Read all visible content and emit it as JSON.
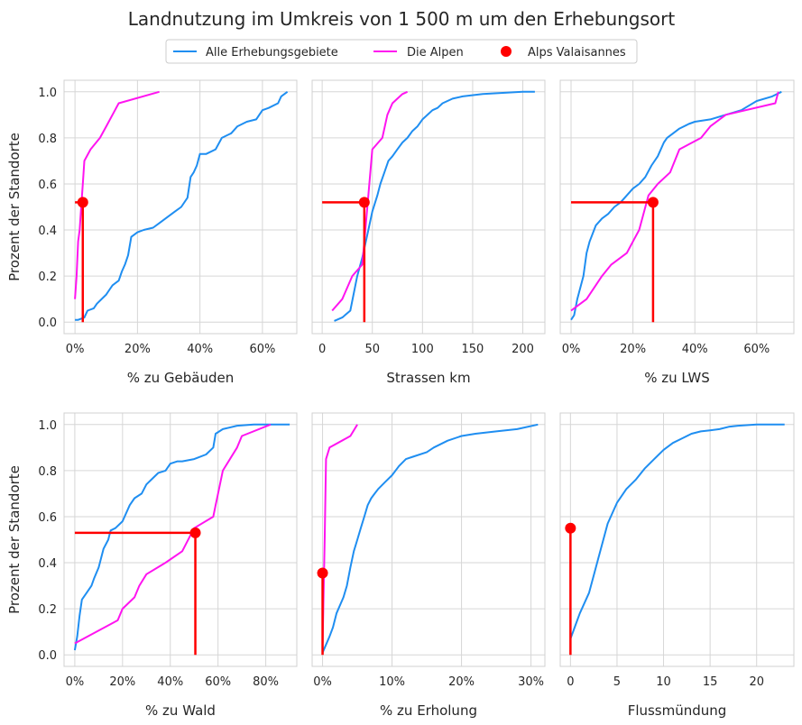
{
  "title": "Landnutzung im Umkreis von 1 500 m um den Erhebungsort",
  "colors": {
    "series_all": "#1f8ef1",
    "series_alps": "#ff14f0",
    "marker": "#ff0000",
    "grid": "#d6d6d6",
    "frame": "#d0d0d0",
    "text": "#262626"
  },
  "legend": {
    "placement": "top-center",
    "entries": [
      {
        "label": "Alle Erhebungsgebiete",
        "kind": "line",
        "color": "#1f8ef1"
      },
      {
        "label": "Die Alpen",
        "kind": "line",
        "color": "#ff14f0"
      },
      {
        "label": "Alps Valaisannes",
        "kind": "marker",
        "color": "#ff0000"
      }
    ]
  },
  "chart_data": [
    {
      "type": "line",
      "xlabel": "% zu Gebäuden",
      "ylabel": "Prozent der Standorte",
      "xlim": [
        -0.035,
        0.71
      ],
      "ylim": [
        -0.05,
        1.05
      ],
      "xticks": [
        0,
        0.2,
        0.4,
        0.6
      ],
      "xticklabels": [
        "0%",
        "20%",
        "40%",
        "60%"
      ],
      "yticks": [
        0,
        0.2,
        0.4,
        0.6,
        0.8,
        1.0
      ],
      "yticklabels": [
        "0.0",
        "0.2",
        "0.4",
        "0.6",
        "0.8",
        "1.0"
      ],
      "grid": true,
      "series": [
        {
          "name": "Alle Erhebungsgebiete",
          "x": [
            0,
            0.01,
            0.02,
            0.03,
            0.04,
            0.06,
            0.07,
            0.1,
            0.11,
            0.12,
            0.14,
            0.15,
            0.16,
            0.17,
            0.18,
            0.2,
            0.22,
            0.25,
            0.27,
            0.3,
            0.32,
            0.34,
            0.36,
            0.37,
            0.38,
            0.39,
            0.4,
            0.42,
            0.45,
            0.47,
            0.5,
            0.52,
            0.55,
            0.58,
            0.6,
            0.62,
            0.65,
            0.66,
            0.68
          ],
          "y": [
            0.01,
            0.01,
            0.015,
            0.02,
            0.05,
            0.06,
            0.08,
            0.12,
            0.14,
            0.16,
            0.18,
            0.22,
            0.25,
            0.29,
            0.37,
            0.39,
            0.4,
            0.41,
            0.43,
            0.46,
            0.48,
            0.5,
            0.54,
            0.63,
            0.65,
            0.68,
            0.73,
            0.73,
            0.75,
            0.8,
            0.82,
            0.85,
            0.87,
            0.88,
            0.92,
            0.93,
            0.95,
            0.98,
            1.0
          ]
        },
        {
          "name": "Die Alpen",
          "x": [
            0.0,
            0.005,
            0.01,
            0.015,
            0.02,
            0.025,
            0.03,
            0.05,
            0.08,
            0.1,
            0.12,
            0.14,
            0.27
          ],
          "y": [
            0.1,
            0.2,
            0.35,
            0.4,
            0.5,
            0.6,
            0.7,
            0.75,
            0.8,
            0.85,
            0.9,
            0.95,
            1.0
          ]
        }
      ],
      "marker": {
        "x": 0.025,
        "y": 0.52,
        "hline": true
      }
    },
    {
      "type": "line",
      "xlabel": "Strassen km",
      "ylabel": "",
      "xlim": [
        -10,
        222
      ],
      "ylim": [
        -0.05,
        1.05
      ],
      "xticks": [
        0,
        50,
        100,
        150,
        200
      ],
      "xticklabels": [
        "0",
        "50",
        "100",
        "150",
        "200"
      ],
      "yticks": [
        0,
        0.2,
        0.4,
        0.6,
        0.8,
        1.0
      ],
      "yticklabels": [],
      "grid": true,
      "series": [
        {
          "name": "Alle Erhebungsgebiete",
          "x": [
            12,
            20,
            28,
            35,
            40,
            45,
            50,
            55,
            58,
            62,
            66,
            70,
            75,
            80,
            85,
            90,
            95,
            100,
            105,
            110,
            115,
            120,
            130,
            140,
            160,
            200,
            212
          ],
          "y": [
            0.005,
            0.02,
            0.05,
            0.2,
            0.28,
            0.38,
            0.48,
            0.55,
            0.6,
            0.65,
            0.7,
            0.72,
            0.75,
            0.78,
            0.8,
            0.83,
            0.85,
            0.88,
            0.9,
            0.92,
            0.93,
            0.95,
            0.97,
            0.98,
            0.99,
            1.0,
            1.0
          ]
        },
        {
          "name": "Die Alpen",
          "x": [
            10,
            20,
            30,
            40,
            45,
            50,
            60,
            65,
            70,
            75,
            80,
            85
          ],
          "y": [
            0.05,
            0.1,
            0.2,
            0.25,
            0.5,
            0.75,
            0.8,
            0.9,
            0.95,
            0.97,
            0.99,
            1.0
          ]
        }
      ],
      "marker": {
        "x": 42,
        "y": 0.52,
        "hline": true
      }
    },
    {
      "type": "line",
      "xlabel": "% zu LWS",
      "ylabel": "",
      "xlim": [
        -0.035,
        0.72
      ],
      "ylim": [
        -0.05,
        1.05
      ],
      "xticks": [
        0,
        0.2,
        0.4,
        0.6
      ],
      "xticklabels": [
        "0%",
        "20%",
        "40%",
        "60%"
      ],
      "yticks": [
        0,
        0.2,
        0.4,
        0.6,
        0.8,
        1.0
      ],
      "yticklabels": [],
      "grid": true,
      "series": [
        {
          "name": "Alle Erhebungsgebiete",
          "x": [
            0,
            0.01,
            0.02,
            0.04,
            0.05,
            0.06,
            0.08,
            0.1,
            0.12,
            0.14,
            0.16,
            0.18,
            0.2,
            0.22,
            0.24,
            0.26,
            0.28,
            0.3,
            0.31,
            0.33,
            0.35,
            0.38,
            0.4,
            0.45,
            0.5,
            0.55,
            0.6,
            0.65,
            0.68
          ],
          "y": [
            0.01,
            0.03,
            0.1,
            0.2,
            0.3,
            0.35,
            0.42,
            0.45,
            0.47,
            0.5,
            0.52,
            0.55,
            0.58,
            0.6,
            0.63,
            0.68,
            0.72,
            0.78,
            0.8,
            0.82,
            0.84,
            0.86,
            0.87,
            0.88,
            0.9,
            0.92,
            0.96,
            0.98,
            1.0
          ]
        },
        {
          "name": "Die Alpen",
          "x": [
            0,
            0.05,
            0.1,
            0.13,
            0.18,
            0.2,
            0.22,
            0.25,
            0.28,
            0.32,
            0.35,
            0.42,
            0.45,
            0.5,
            0.66,
            0.67
          ],
          "y": [
            0.05,
            0.1,
            0.2,
            0.25,
            0.3,
            0.35,
            0.4,
            0.55,
            0.6,
            0.65,
            0.75,
            0.8,
            0.85,
            0.9,
            0.95,
            1.0
          ]
        }
      ],
      "marker": {
        "x": 0.265,
        "y": 0.52,
        "hline": true
      }
    },
    {
      "type": "line",
      "xlabel": "% zu Wald",
      "ylabel": "Prozent der Standorte",
      "xlim": [
        -0.045,
        0.93
      ],
      "ylim": [
        -0.05,
        1.05
      ],
      "xticks": [
        0,
        0.2,
        0.4,
        0.6,
        0.8
      ],
      "xticklabels": [
        "0%",
        "20%",
        "40%",
        "60%",
        "80%"
      ],
      "yticks": [
        0,
        0.2,
        0.4,
        0.6,
        0.8,
        1.0
      ],
      "yticklabels": [
        "0.0",
        "0.2",
        "0.4",
        "0.6",
        "0.8",
        "1.0"
      ],
      "grid": true,
      "series": [
        {
          "name": "Alle Erhebungsgebiete",
          "x": [
            0,
            0.01,
            0.02,
            0.03,
            0.05,
            0.07,
            0.08,
            0.1,
            0.12,
            0.14,
            0.15,
            0.17,
            0.2,
            0.23,
            0.25,
            0.28,
            0.3,
            0.33,
            0.35,
            0.38,
            0.4,
            0.43,
            0.45,
            0.5,
            0.55,
            0.58,
            0.59,
            0.62,
            0.68,
            0.75,
            0.8,
            0.9
          ],
          "y": [
            0.02,
            0.08,
            0.17,
            0.24,
            0.27,
            0.3,
            0.33,
            0.38,
            0.46,
            0.5,
            0.54,
            0.55,
            0.58,
            0.65,
            0.68,
            0.7,
            0.74,
            0.77,
            0.79,
            0.8,
            0.83,
            0.84,
            0.84,
            0.85,
            0.87,
            0.9,
            0.96,
            0.98,
            0.995,
            1.0,
            1.0,
            1.0
          ]
        },
        {
          "name": "Die Alpen",
          "x": [
            0,
            0.18,
            0.2,
            0.25,
            0.27,
            0.3,
            0.38,
            0.45,
            0.5,
            0.58,
            0.59,
            0.6,
            0.62,
            0.68,
            0.7,
            0.82
          ],
          "y": [
            0.05,
            0.15,
            0.2,
            0.25,
            0.3,
            0.35,
            0.4,
            0.45,
            0.55,
            0.6,
            0.65,
            0.7,
            0.8,
            0.9,
            0.95,
            1.0
          ]
        }
      ],
      "marker": {
        "x": 0.505,
        "y": 0.53,
        "hline": true
      }
    },
    {
      "type": "line",
      "xlabel": "% zu Erholung",
      "ylabel": "",
      "xlim": [
        -0.015,
        0.32
      ],
      "ylim": [
        -0.05,
        1.05
      ],
      "xticks": [
        0,
        0.1,
        0.2,
        0.3
      ],
      "xticklabels": [
        "0%",
        "10%",
        "20%",
        "30%"
      ],
      "yticks": [
        0,
        0.2,
        0.4,
        0.6,
        0.8,
        1.0
      ],
      "yticklabels": [],
      "grid": true,
      "series": [
        {
          "name": "Alle Erhebungsgebiete",
          "x": [
            0,
            0.01,
            0.015,
            0.02,
            0.03,
            0.035,
            0.04,
            0.045,
            0.05,
            0.055,
            0.06,
            0.065,
            0.07,
            0.075,
            0.08,
            0.09,
            0.1,
            0.11,
            0.12,
            0.13,
            0.15,
            0.16,
            0.18,
            0.2,
            0.22,
            0.25,
            0.28,
            0.31
          ],
          "y": [
            0.01,
            0.08,
            0.12,
            0.18,
            0.25,
            0.3,
            0.38,
            0.45,
            0.5,
            0.55,
            0.6,
            0.65,
            0.68,
            0.7,
            0.72,
            0.75,
            0.78,
            0.82,
            0.85,
            0.86,
            0.88,
            0.9,
            0.93,
            0.95,
            0.96,
            0.97,
            0.98,
            1.0
          ]
        },
        {
          "name": "Die Alpen",
          "x": [
            0.0,
            0.003,
            0.005,
            0.01,
            0.04,
            0.05
          ],
          "y": [
            0.05,
            0.5,
            0.85,
            0.9,
            0.95,
            1.0
          ]
        }
      ],
      "marker": {
        "x": 0.0,
        "y": 0.355,
        "hline": false
      }
    },
    {
      "type": "line",
      "xlabel": "Flussmündung",
      "ylabel": "",
      "xlim": [
        -1.1,
        24
      ],
      "ylim": [
        -0.05,
        1.05
      ],
      "xticks": [
        0,
        5,
        10,
        15,
        20
      ],
      "xticklabels": [
        "0",
        "5",
        "10",
        "15",
        "20"
      ],
      "yticks": [
        0,
        0.2,
        0.4,
        0.6,
        0.8,
        1.0
      ],
      "yticklabels": [],
      "grid": true,
      "series": [
        {
          "name": "Alle Erhebungsgebiete",
          "x": [
            0,
            1,
            2,
            3,
            4,
            5,
            6,
            7,
            8,
            9,
            10,
            11,
            12,
            13,
            14,
            15,
            16,
            17,
            18,
            20,
            23
          ],
          "y": [
            0.07,
            0.18,
            0.27,
            0.42,
            0.57,
            0.66,
            0.72,
            0.76,
            0.81,
            0.85,
            0.89,
            0.92,
            0.94,
            0.96,
            0.97,
            0.975,
            0.98,
            0.99,
            0.995,
            1.0,
            1.0
          ]
        }
      ],
      "marker": {
        "x": 0.0,
        "y": 0.55,
        "hline": false
      }
    }
  ]
}
